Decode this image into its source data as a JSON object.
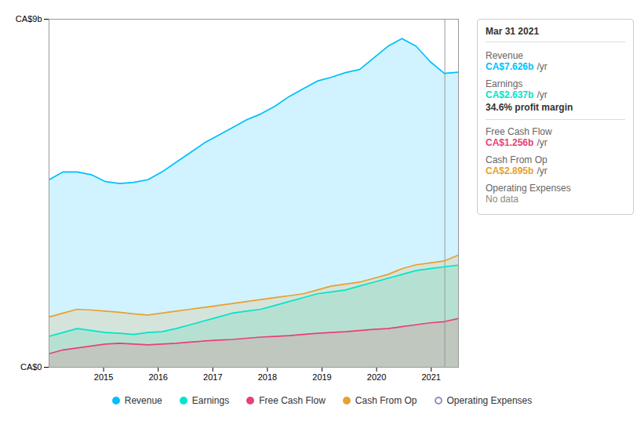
{
  "chart_data": {
    "type": "area",
    "x": [
      2014,
      2014.258621,
      2014.517241,
      2014.775862,
      2015.034483,
      2015.293103,
      2015.551724,
      2015.810345,
      2016.068966,
      2016.327586,
      2016.586207,
      2016.844828,
      2017.103448,
      2017.362069,
      2017.62069,
      2017.87931,
      2018.137931,
      2018.396552,
      2018.655172,
      2018.913793,
      2019.172414,
      2019.431034,
      2019.689655,
      2019.948276,
      2020.206897,
      2020.465517,
      2020.724138,
      2020.982759,
      2021.241379,
      2021.5
    ],
    "series": [
      {
        "name": "Revenue",
        "color": "#00bfff",
        "values": [
          4.85,
          5.05,
          5.05,
          4.98,
          4.8,
          4.75,
          4.78,
          4.85,
          5.05,
          5.3,
          5.55,
          5.8,
          6.0,
          6.2,
          6.4,
          6.55,
          6.75,
          7.0,
          7.2,
          7.4,
          7.5,
          7.62,
          7.7,
          8.0,
          8.3,
          8.5,
          8.3,
          7.9,
          7.6,
          7.63
        ]
      },
      {
        "name": "Earnings",
        "color": "#00e5cc",
        "values": [
          0.8,
          0.9,
          1.0,
          0.95,
          0.9,
          0.88,
          0.85,
          0.9,
          0.92,
          1.0,
          1.1,
          1.2,
          1.3,
          1.4,
          1.45,
          1.5,
          1.6,
          1.7,
          1.8,
          1.9,
          1.95,
          2.0,
          2.1,
          2.2,
          2.3,
          2.4,
          2.5,
          2.55,
          2.6,
          2.64
        ]
      },
      {
        "name": "Free Cash Flow",
        "color": "#e8407a",
        "values": [
          0.35,
          0.45,
          0.5,
          0.55,
          0.6,
          0.62,
          0.6,
          0.58,
          0.6,
          0.62,
          0.65,
          0.68,
          0.7,
          0.72,
          0.75,
          0.78,
          0.8,
          0.82,
          0.85,
          0.88,
          0.9,
          0.92,
          0.95,
          0.98,
          1.0,
          1.05,
          1.1,
          1.15,
          1.18,
          1.26
        ]
      },
      {
        "name": "Cash From Op",
        "color": "#e8a030",
        "values": [
          1.3,
          1.4,
          1.5,
          1.48,
          1.45,
          1.42,
          1.38,
          1.35,
          1.4,
          1.45,
          1.5,
          1.55,
          1.6,
          1.65,
          1.7,
          1.75,
          1.8,
          1.85,
          1.9,
          2.0,
          2.1,
          2.15,
          2.2,
          2.3,
          2.4,
          2.55,
          2.65,
          2.7,
          2.75,
          2.9
        ]
      },
      {
        "name": "Operating Expenses",
        "color": "#9090c0",
        "values": [
          null,
          null,
          null,
          null,
          null,
          null,
          null,
          null,
          null,
          null,
          null,
          null,
          null,
          null,
          null,
          null,
          null,
          null,
          null,
          null,
          null,
          null,
          null,
          null,
          null,
          null,
          null,
          null,
          null,
          null
        ]
      }
    ],
    "xlim": [
      2014.0,
      2021.5
    ],
    "xticks": [
      2015,
      2016,
      2017,
      2018,
      2019,
      2020,
      2021
    ],
    "ylim": [
      0,
      9.0
    ],
    "yticks": [
      {
        "value": 0,
        "label": "CA$0"
      },
      {
        "value": 9.0,
        "label": "CA$9b"
      }
    ],
    "grid": true,
    "legend": "bottom",
    "annotations": [
      {
        "x": 2021.25,
        "title": "Mar 31 2021",
        "rows": [
          {
            "label": "Revenue",
            "text": "CA$7.626b",
            "unit": "/yr"
          },
          {
            "label": "Earnings",
            "text": "CA$2.637b",
            "unit": "/yr",
            "sub": "34.6% profit margin"
          },
          {
            "label": "Free Cash Flow",
            "text": "CA$1.256b",
            "unit": "/yr"
          },
          {
            "label": "Cash From Op",
            "text": "CA$2.895b",
            "unit": "/yr"
          },
          {
            "label": "Operating Expenses",
            "text": "No data"
          }
        ]
      }
    ]
  }
}
